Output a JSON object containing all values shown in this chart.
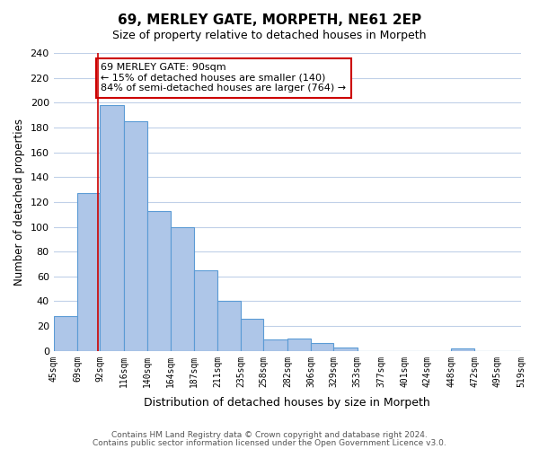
{
  "title": "69, MERLEY GATE, MORPETH, NE61 2EP",
  "subtitle": "Size of property relative to detached houses in Morpeth",
  "xlabel": "Distribution of detached houses by size in Morpeth",
  "ylabel": "Number of detached properties",
  "bar_edges": [
    45,
    69,
    92,
    116,
    140,
    164,
    187,
    211,
    235,
    258,
    282,
    306,
    329,
    353,
    377,
    401,
    424,
    448,
    472,
    495,
    519
  ],
  "bar_heights": [
    28,
    127,
    198,
    185,
    113,
    100,
    65,
    40,
    26,
    9,
    10,
    6,
    3,
    0,
    0,
    0,
    0,
    2,
    0,
    0
  ],
  "tick_labels": [
    "45sqm",
    "69sqm",
    "92sqm",
    "116sqm",
    "140sqm",
    "164sqm",
    "187sqm",
    "211sqm",
    "235sqm",
    "258sqm",
    "282sqm",
    "306sqm",
    "329sqm",
    "353sqm",
    "377sqm",
    "401sqm",
    "424sqm",
    "448sqm",
    "472sqm",
    "495sqm",
    "519sqm"
  ],
  "bar_color": "#aec6e8",
  "bar_edge_color": "#5b9bd5",
  "vline_x": 90,
  "vline_color": "#cc0000",
  "ylim": [
    0,
    240
  ],
  "yticks": [
    0,
    20,
    40,
    60,
    80,
    100,
    120,
    140,
    160,
    180,
    200,
    220,
    240
  ],
  "annotation_title": "69 MERLEY GATE: 90sqm",
  "annotation_line1": "← 15% of detached houses are smaller (140)",
  "annotation_line2": "84% of semi-detached houses are larger (764) →",
  "annotation_box_color": "#ffffff",
  "annotation_box_edge": "#cc0000",
  "footer_line1": "Contains HM Land Registry data © Crown copyright and database right 2024.",
  "footer_line2": "Contains public sector information licensed under the Open Government Licence v3.0.",
  "background_color": "#ffffff",
  "grid_color": "#c0d0e8"
}
